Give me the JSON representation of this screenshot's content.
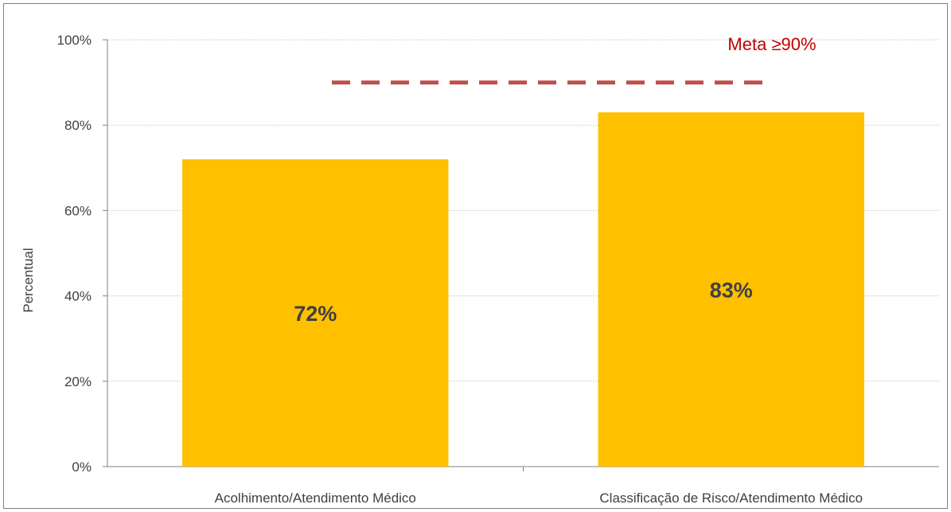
{
  "chart_data": {
    "type": "bar",
    "categories": [
      "Acolhimento/Atendimento Médico",
      "Classificação de Risco/Atendimento Médico"
    ],
    "values": [
      72,
      83
    ],
    "data_labels": [
      "72%",
      "83%"
    ],
    "ylabel": "Percentual",
    "ylim": [
      0,
      100
    ],
    "yticks": [
      0,
      20,
      40,
      60,
      80,
      100
    ],
    "ytick_labels": [
      "0%",
      "20%",
      "40%",
      "60%",
      "80%",
      "100%"
    ],
    "grid": true,
    "bar_color": "#FFC000",
    "target": {
      "label": "Meta ≥90%",
      "value": 90,
      "color": "#C0504D"
    }
  }
}
